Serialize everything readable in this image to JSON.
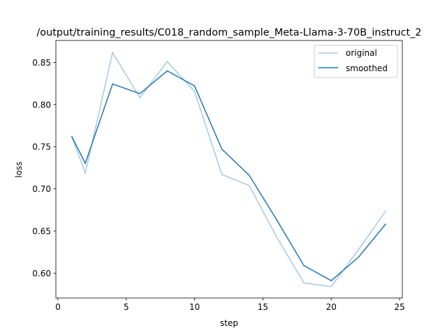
{
  "chart_data": {
    "type": "line",
    "title": "/output/training_results/C018_random_sample_Meta-Llama-3-70B_instruct_2",
    "xlabel": "step",
    "ylabel": "loss",
    "xlim": [
      -0.15,
      25.2
    ],
    "ylim": [
      0.5705,
      0.876
    ],
    "xticks": [
      0,
      5,
      10,
      15,
      20,
      25
    ],
    "yticks": [
      0.6,
      0.65,
      0.7,
      0.75,
      0.8,
      0.85
    ],
    "xtick_labels": [
      "0",
      "5",
      "10",
      "15",
      "20",
      "25"
    ],
    "ytick_labels": [
      "0.60",
      "0.65",
      "0.70",
      "0.75",
      "0.80",
      "0.85"
    ],
    "grid": false,
    "legend": "top-right",
    "x": [
      1,
      2,
      4,
      6,
      8,
      10,
      12,
      14,
      16,
      18,
      20,
      22,
      24
    ],
    "series": [
      {
        "name": "original",
        "color": "#a6c8e3",
        "values": [
          0.7625,
          0.7188,
          0.8616,
          0.808,
          0.851,
          0.8153,
          0.717,
          0.704,
          0.643,
          0.5884,
          0.584,
          0.628,
          0.674
        ]
      },
      {
        "name": "smoothed",
        "color": "#1f77b4",
        "values": [
          0.7625,
          0.7304,
          0.8244,
          0.8129,
          0.84,
          0.822,
          0.747,
          0.716,
          0.6635,
          0.609,
          0.591,
          0.619,
          0.6586
        ]
      }
    ]
  }
}
